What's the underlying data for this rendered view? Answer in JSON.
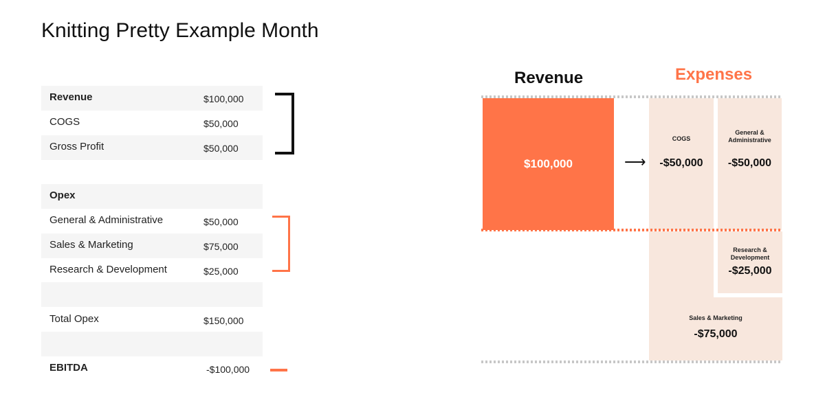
{
  "title": "Knitting Pretty Example Month",
  "statement": {
    "revenue": {
      "label": "Revenue",
      "value": "$100,000"
    },
    "cogs": {
      "label": "COGS",
      "value": "$50,000"
    },
    "gross_profit": {
      "label": "Gross Profit",
      "value": "$50,000"
    },
    "opex": {
      "label": "Opex"
    },
    "ga": {
      "label": "General & Administrative",
      "value": "$50,000"
    },
    "sm": {
      "label": "Sales & Marketing",
      "value": "$75,000"
    },
    "rd": {
      "label": "Research & Development",
      "value": "$25,000"
    },
    "total_opex": {
      "label": "Total Opex",
      "value": "$150,000"
    },
    "ebitda": {
      "label": "EBITDA",
      "value": "-$100,000"
    }
  },
  "diagram": {
    "revenue_heading": "Revenue",
    "expenses_heading": "Expenses",
    "revenue_amount": "$100,000",
    "arrow": "⟶",
    "cogs": {
      "label": "COGS",
      "amount": "-$50,000"
    },
    "ga": {
      "label1": "General &",
      "label2": "Administrative",
      "amount": "-$50,000"
    },
    "rd": {
      "label1": "Research &",
      "label2": "Development",
      "amount": "-$25,000"
    },
    "sm": {
      "label": "Sales & Marketing",
      "amount": "-$75,000"
    },
    "colors": {
      "accent": "#ff7448",
      "expense_fill": "#f8e7dd",
      "dotted_grey": "#c7c7c7"
    }
  }
}
